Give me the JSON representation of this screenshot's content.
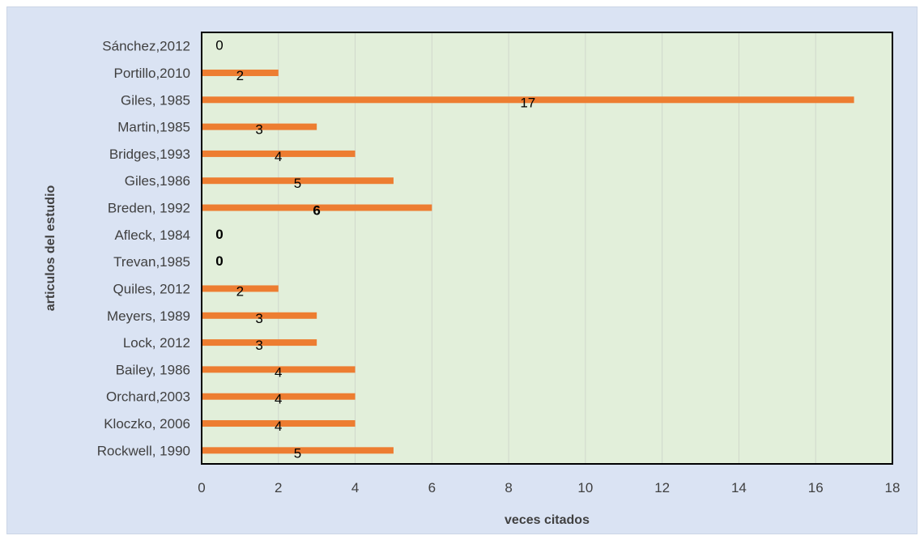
{
  "chart_data": {
    "type": "bar",
    "orientation": "horizontal",
    "title": "",
    "xlabel": "veces citados",
    "ylabel": "articulos del estudio",
    "xlim": [
      0,
      18
    ],
    "xticks": [
      "0",
      "2",
      "4",
      "6",
      "8",
      "10",
      "12",
      "14",
      "16",
      "18"
    ],
    "grid": true,
    "legend": "none",
    "categories": [
      "Sánchez,2012",
      "Portillo,2010",
      "Giles, 1985",
      "Martin,1985",
      "Bridges,1993",
      "Giles,1986",
      "Breden, 1992",
      "Afleck, 1984",
      "Trevan,1985",
      "Quiles, 2012",
      "Meyers, 1989",
      "Lock, 2012",
      "Bailey, 1986",
      "Orchard,2003",
      "Kloczko, 2006",
      "Rockwell, 1990"
    ],
    "values": [
      0,
      2,
      17,
      3,
      4,
      5,
      6,
      0,
      0,
      2,
      3,
      3,
      4,
      4,
      4,
      5
    ],
    "data_labels": [
      "0",
      "2",
      "17",
      "3",
      "4",
      "5",
      "6",
      "0",
      "0",
      "2",
      "3",
      "3",
      "4",
      "4",
      "4",
      "5"
    ],
    "bold_labels": [
      false,
      false,
      false,
      false,
      false,
      false,
      true,
      true,
      true,
      false,
      false,
      false,
      false,
      false,
      false,
      false
    ],
    "colors": {
      "bar": "#ed7d31",
      "plot_background": "#e2efda",
      "chart_background": "#dae3f3",
      "gridline": "#d0d7cc",
      "axis": "#000000"
    }
  }
}
